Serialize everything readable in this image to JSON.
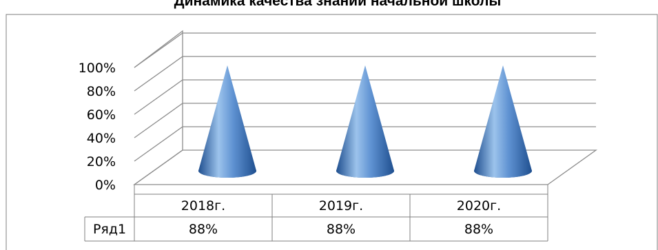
{
  "chart_data": {
    "type": "bar",
    "shape": "cone-3d",
    "title": "Динамика качества знаний начальной школы",
    "categories": [
      "2018г.",
      "2019г.",
      "2020г."
    ],
    "series": [
      {
        "name": "Ряд1",
        "values": [
          88,
          88,
          88
        ],
        "labels": [
          "88%",
          "88%",
          "88%"
        ]
      }
    ],
    "y_ticks": [
      "0%",
      "20%",
      "40%",
      "60%",
      "80%",
      "100%"
    ],
    "ylim": [
      0,
      100
    ],
    "grid": true,
    "data_table": true,
    "colors": {
      "cone_light": "#9cc3ec",
      "cone_mid": "#4f82c4",
      "cone_dark": "#1f4f8f",
      "grid": "#8c8c8c"
    }
  }
}
